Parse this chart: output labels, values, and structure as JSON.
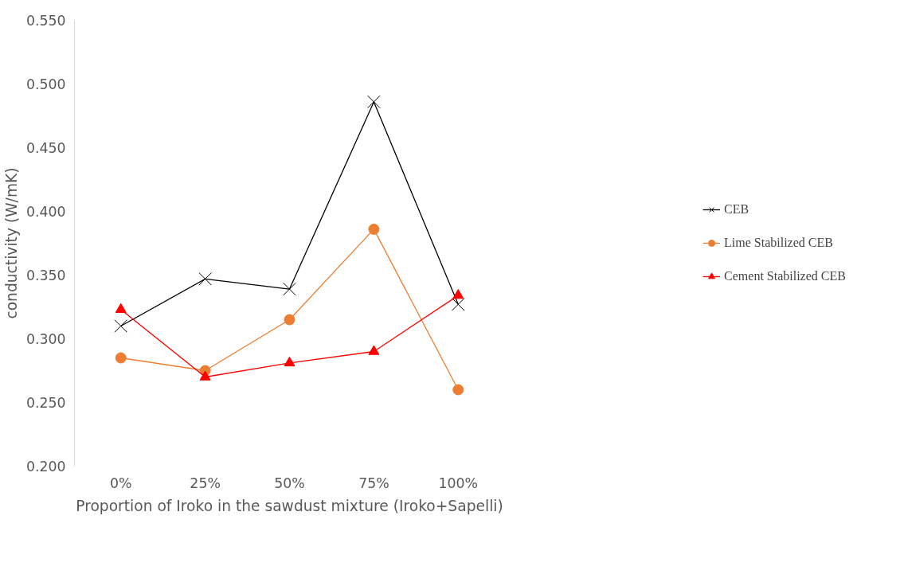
{
  "chart_data": {
    "type": "line",
    "xlabel": "Proportion of Iroko in the sawdust mixture (Iroko+Sapelli)",
    "ylabel": "conductivity (W/mK)",
    "categories": [
      "0%",
      "25%",
      "50%",
      "75%",
      "100%"
    ],
    "series": [
      {
        "name": "CEB",
        "color": "#000000",
        "marker": "cross",
        "values": [
          0.31,
          0.347,
          0.339,
          0.486,
          0.327
        ]
      },
      {
        "name": "Lime Stabilized CEB",
        "color": "#ed7d31",
        "marker": "circle",
        "values": [
          0.285,
          0.275,
          0.315,
          0.386,
          0.26
        ]
      },
      {
        "name": "Cement Stabilized CEB",
        "color": "#ff0000",
        "marker": "triangle",
        "values": [
          0.323,
          0.27,
          0.281,
          0.29,
          0.334
        ]
      }
    ],
    "ylim": [
      0.2,
      0.55
    ],
    "yticks": [
      {
        "value": 0.2,
        "label": "0.200"
      },
      {
        "value": 0.25,
        "label": "0.250"
      },
      {
        "value": 0.3,
        "label": "0.300"
      },
      {
        "value": 0.35,
        "label": "0.350"
      },
      {
        "value": 0.4,
        "label": "0.400"
      },
      {
        "value": 0.45,
        "label": "0.450"
      },
      {
        "value": 0.5,
        "label": "0.500"
      },
      {
        "value": 0.55,
        "label": "0.550"
      }
    ],
    "grid": false,
    "legend": "right",
    "line_style": "solid"
  }
}
